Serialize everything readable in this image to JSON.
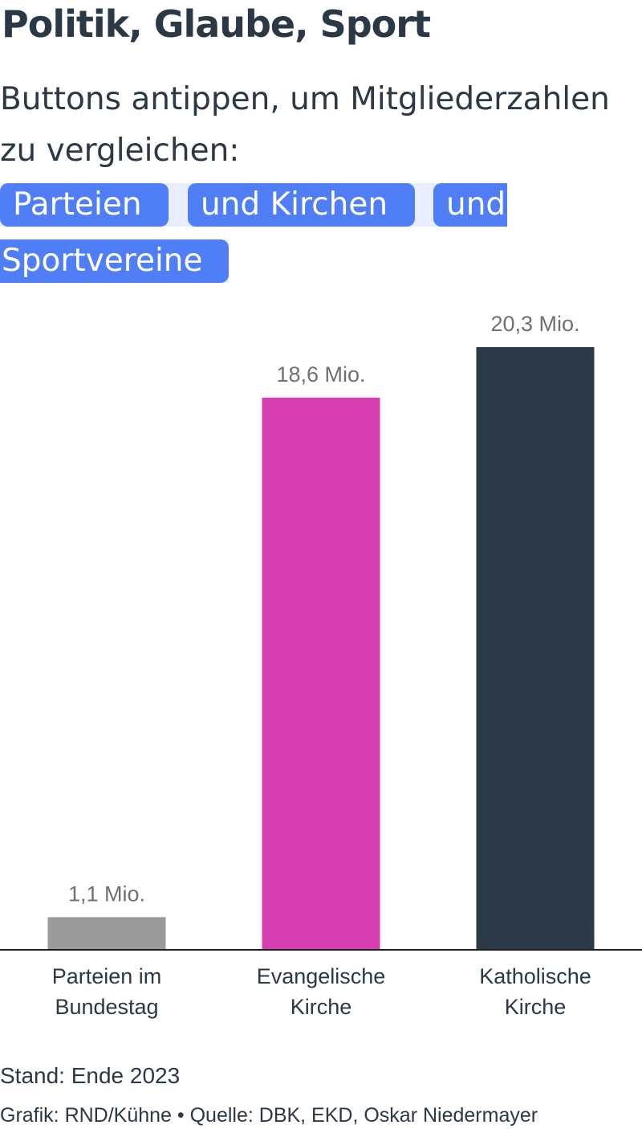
{
  "title": "Politik, Glaube, Sport",
  "subtitle": "Buttons antippen, um Mitgliederzahlen zu vergleichen:",
  "buttons": [
    {
      "label": "Parteien"
    },
    {
      "label": "und Kirchen"
    },
    {
      "label": "und"
    },
    {
      "label": "Sportvereine"
    }
  ],
  "colors": {
    "button": "#4f7ef6",
    "button_text": "#ffffff",
    "text": "#2b3846",
    "value_label": "#707070"
  },
  "chart_data": {
    "type": "bar",
    "categories": [
      [
        "Parteien im",
        "Bundestag"
      ],
      [
        "Evangelische",
        "Kirche"
      ],
      [
        "Katholische",
        "Kirche"
      ]
    ],
    "values": [
      1.1,
      18.6,
      20.3
    ],
    "value_labels": [
      "1,1 Mio.",
      "18,6 Mio.",
      "20,3 Mio."
    ],
    "colors": [
      "#9b9b9b",
      "#d73eb2",
      "#2c3947"
    ],
    "ylim": [
      0,
      20.3
    ],
    "grid": false,
    "legend": "none"
  },
  "footer": {
    "stand": "Stand: Ende 2023",
    "credit": "Grafik: RND/Kühne • Quelle: DBK, EKD, Oskar Niedermayer"
  }
}
